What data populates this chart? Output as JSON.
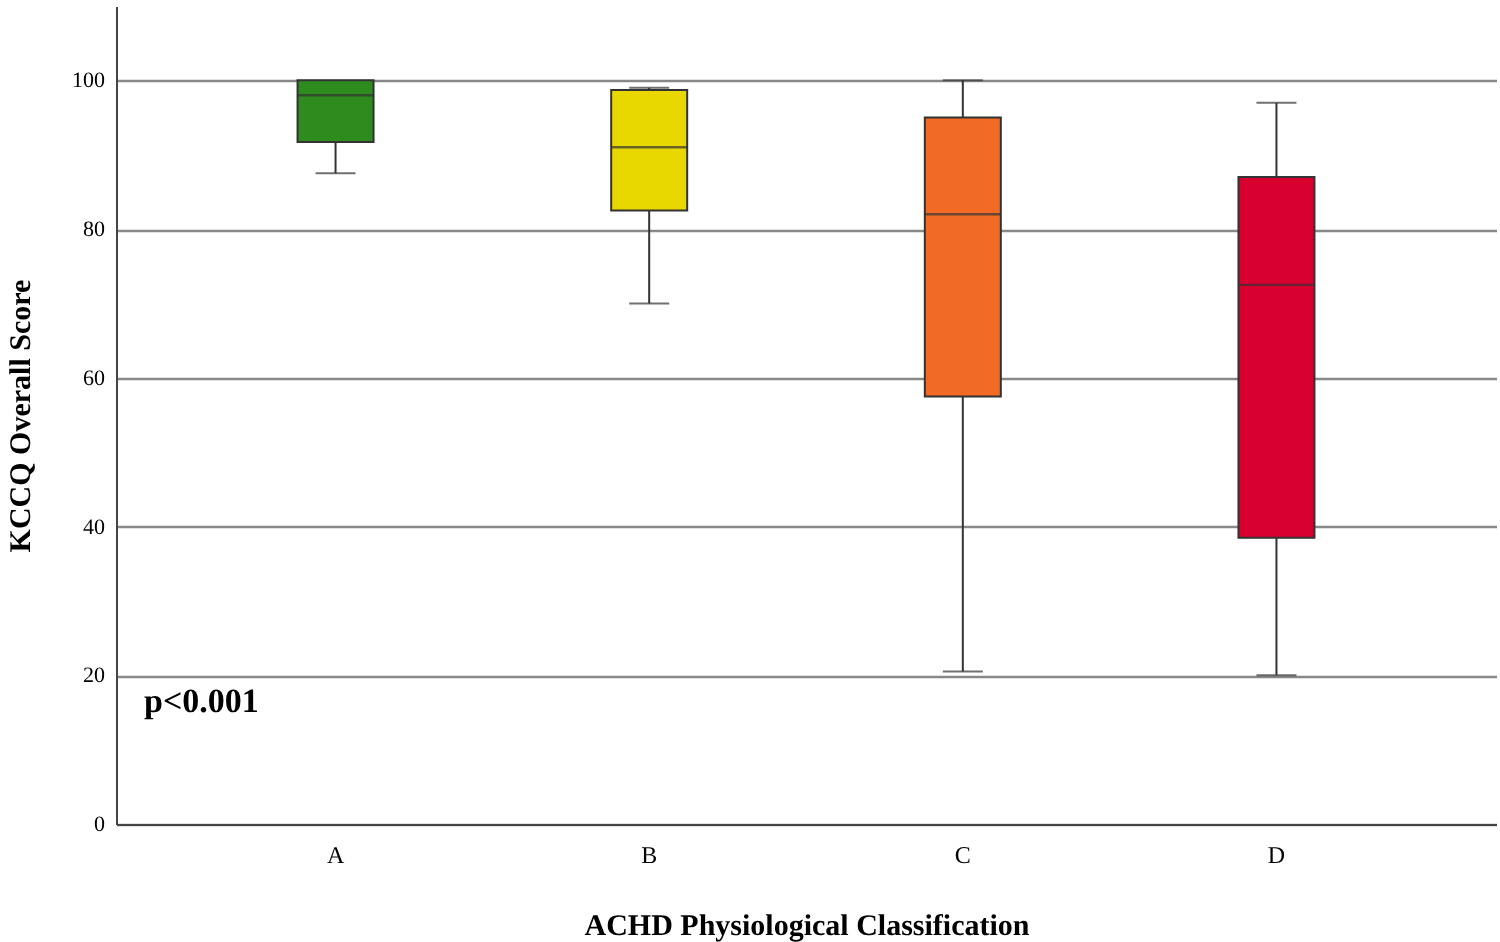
{
  "chart_data": {
    "type": "box",
    "xlabel": "ACHD Physiological Classification",
    "ylabel": "KCCQ Overall Score",
    "categories": [
      "A",
      "B",
      "C",
      "D"
    ],
    "boxes": [
      {
        "low": 87.5,
        "q1": 91.7,
        "median": 98,
        "q3": 100,
        "high": 100
      },
      {
        "low": 70,
        "q1": 82.5,
        "median": 91,
        "q3": 98.7,
        "high": 99
      },
      {
        "low": 20.5,
        "q1": 57.5,
        "median": 82,
        "q3": 95,
        "high": 100
      },
      {
        "low": 20,
        "q1": 38.5,
        "median": 72.5,
        "q3": 87,
        "high": 97
      }
    ],
    "colors": [
      "#2e8b1e",
      "#e8d800",
      "#f26b25",
      "#d8002f"
    ],
    "ylim": [
      0,
      110
    ],
    "yticks": [
      0,
      20,
      40,
      60,
      80,
      100
    ],
    "grid": "y",
    "annotations": [
      "p<0.001"
    ]
  }
}
